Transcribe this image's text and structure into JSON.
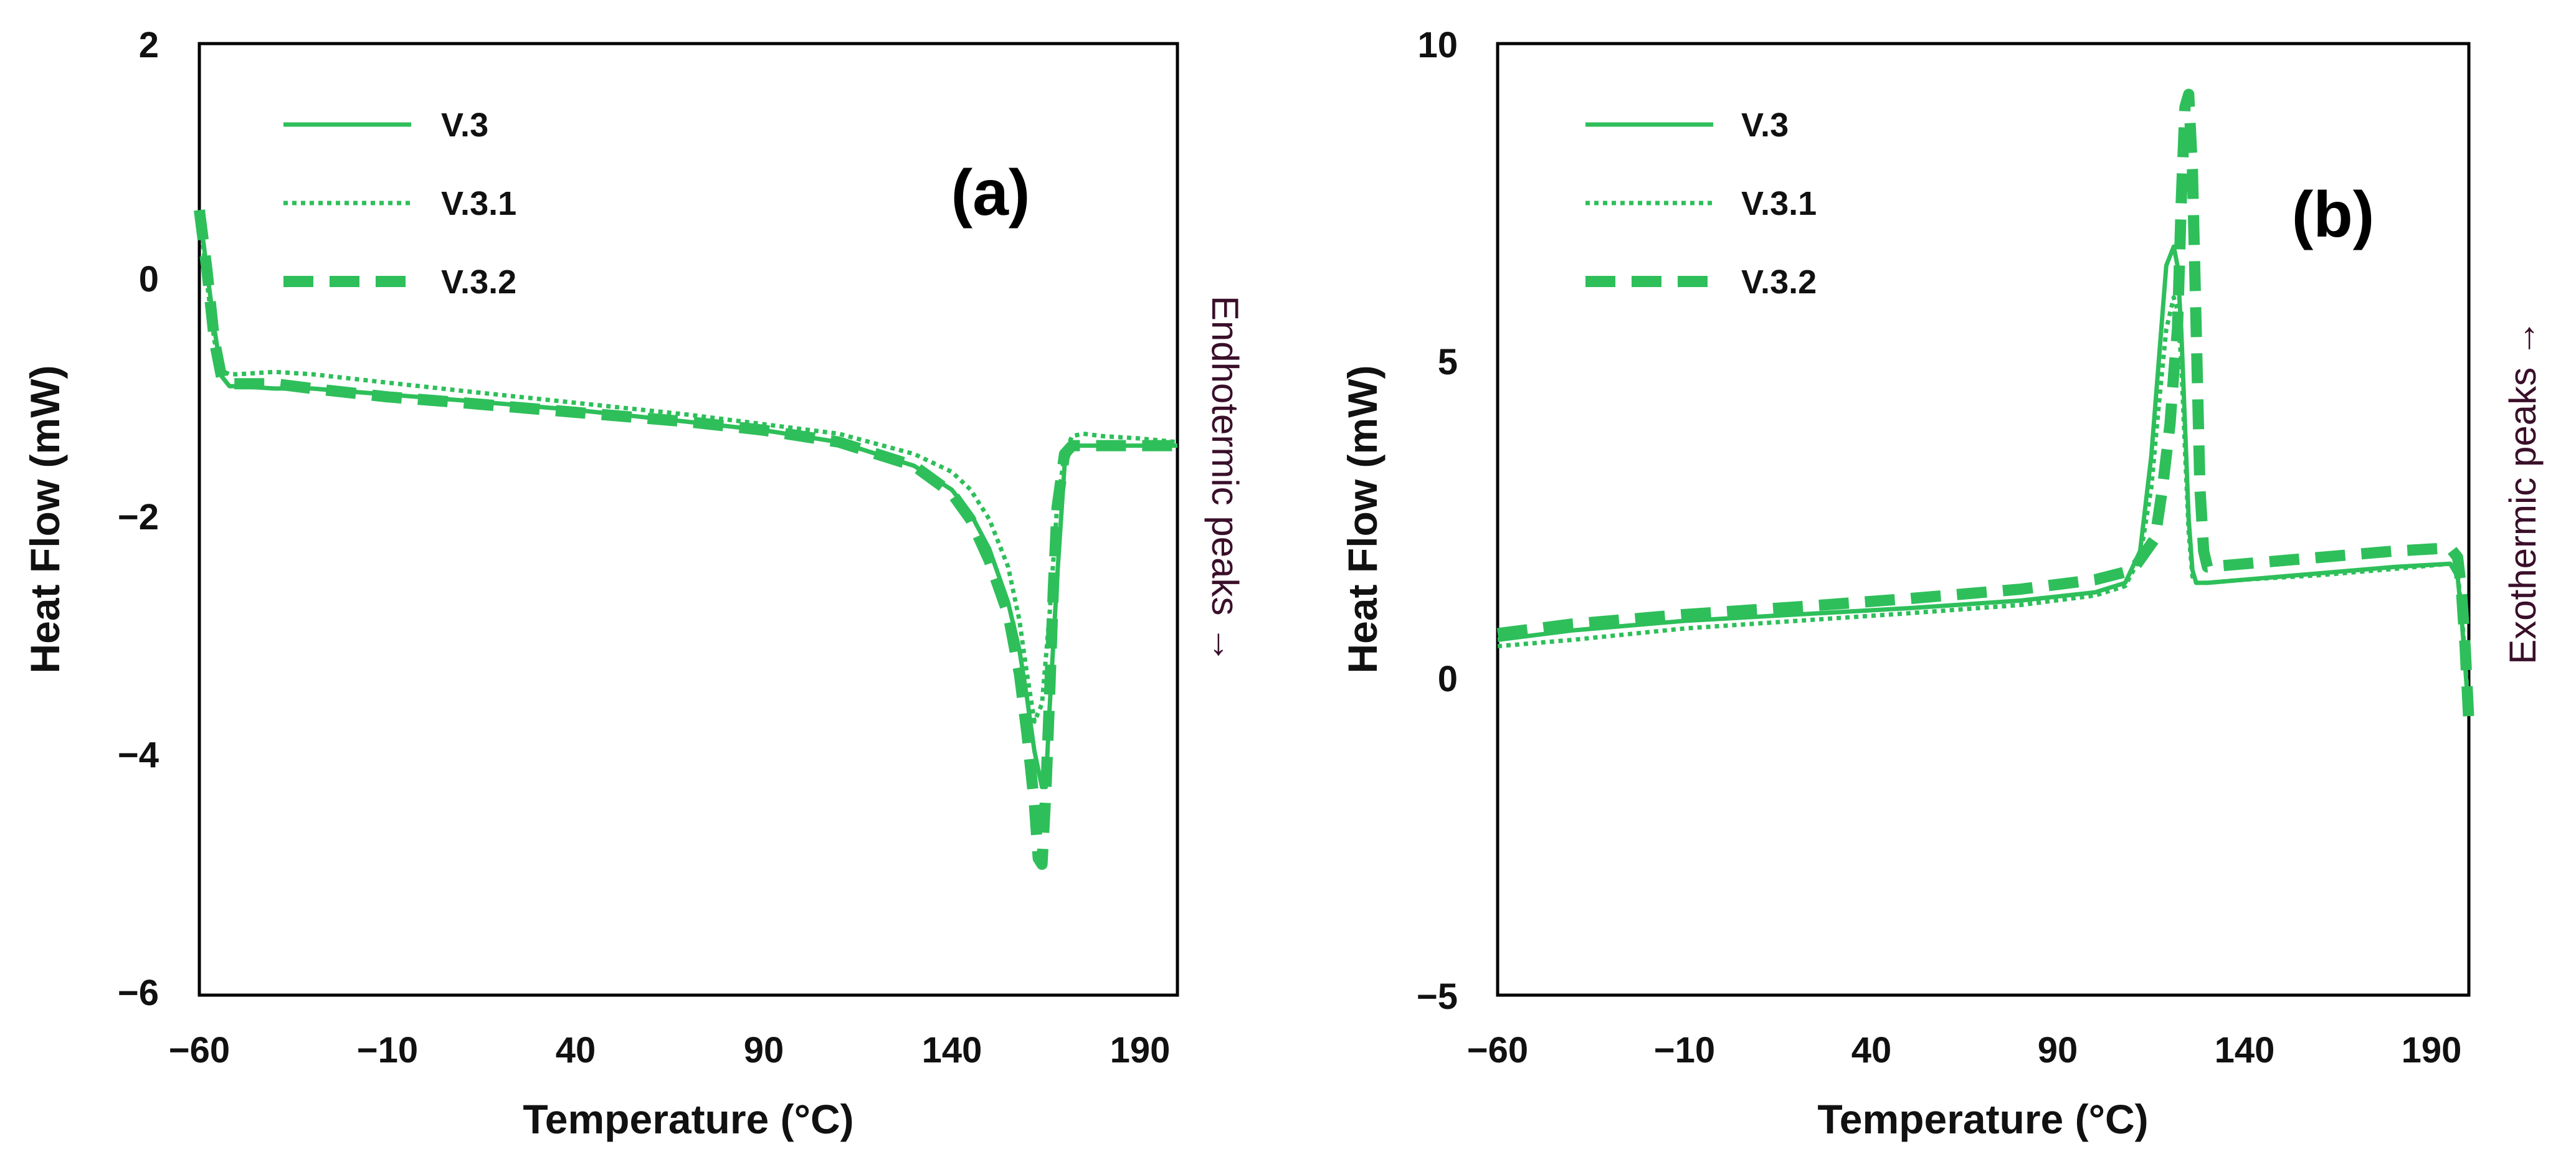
{
  "chart_data": [
    {
      "type": "line",
      "panel_label": "(a)",
      "title": "",
      "xlabel": "Temperature (°C)",
      "ylabel": "Heat Flow (mW)",
      "side_note": "Endhotermic peaks →",
      "xlim": [
        -60,
        200
      ],
      "ylim": [
        -6,
        2
      ],
      "x_ticks": [
        -60,
        -10,
        40,
        90,
        140,
        190
      ],
      "x_tick_labels": [
        "−60",
        "−10",
        "40",
        "90",
        "140",
        "190"
      ],
      "y_ticks": [
        -6,
        -4,
        -2,
        0,
        2
      ],
      "y_tick_labels": [
        "−6",
        "−4",
        "−2",
        "0",
        "2"
      ],
      "grid": false,
      "legend": "top-left",
      "series": [
        {
          "name": "V.3",
          "style": "solid",
          "x": [
            -60,
            -58,
            -56,
            -54,
            -52,
            -50,
            -40,
            -30,
            -10,
            10,
            40,
            70,
            90,
            110,
            130,
            140,
            145,
            150,
            155,
            158,
            160,
            162,
            164,
            165,
            166,
            168,
            170,
            172,
            175,
            180,
            190,
            200
          ],
          "y": [
            0.6,
            0.1,
            -0.4,
            -0.8,
            -0.88,
            -0.88,
            -0.9,
            -0.9,
            -0.95,
            -1.0,
            -1.08,
            -1.18,
            -1.25,
            -1.35,
            -1.55,
            -1.75,
            -1.95,
            -2.25,
            -2.7,
            -3.1,
            -3.5,
            -3.95,
            -4.25,
            -4.25,
            -3.6,
            -2.5,
            -1.55,
            -1.38,
            -1.38,
            -1.38,
            -1.38,
            -1.38
          ]
        },
        {
          "name": "V.3.1",
          "style": "dotted",
          "x": [
            -60,
            -58,
            -56,
            -54,
            -52,
            -50,
            -40,
            -30,
            -10,
            10,
            40,
            70,
            90,
            110,
            130,
            140,
            145,
            150,
            155,
            158,
            160,
            162,
            164,
            166,
            168,
            170,
            172,
            175,
            180,
            190,
            200
          ],
          "y": [
            0.6,
            0.0,
            -0.5,
            -0.75,
            -0.78,
            -0.78,
            -0.76,
            -0.78,
            -0.85,
            -0.92,
            -1.02,
            -1.12,
            -1.2,
            -1.28,
            -1.45,
            -1.6,
            -1.75,
            -2.0,
            -2.4,
            -2.85,
            -3.3,
            -3.7,
            -3.55,
            -2.8,
            -1.9,
            -1.45,
            -1.3,
            -1.28,
            -1.3,
            -1.32,
            -1.35
          ]
        },
        {
          "name": "V.3.2",
          "style": "dashed",
          "x": [
            -60,
            -58,
            -56,
            -54,
            -52,
            -50,
            -40,
            -30,
            -10,
            10,
            40,
            70,
            90,
            110,
            130,
            140,
            145,
            150,
            155,
            158,
            160,
            162,
            163,
            164,
            165,
            166,
            167,
            168,
            170,
            172,
            175,
            180,
            190,
            200
          ],
          "y": [
            0.6,
            0.1,
            -0.5,
            -0.82,
            -0.86,
            -0.86,
            -0.86,
            -0.9,
            -0.97,
            -1.02,
            -1.1,
            -1.18,
            -1.25,
            -1.35,
            -1.55,
            -1.78,
            -2.0,
            -2.35,
            -2.8,
            -3.3,
            -3.8,
            -4.4,
            -4.85,
            -4.9,
            -4.3,
            -3.5,
            -2.6,
            -1.9,
            -1.45,
            -1.38,
            -1.38,
            -1.38,
            -1.38,
            -1.38
          ]
        }
      ]
    },
    {
      "type": "line",
      "panel_label": "(b)",
      "title": "",
      "xlabel": "Temperature (°C)",
      "ylabel": "Heat Flow (mW)",
      "side_note": "Exothermic peaks →",
      "xlim": [
        -60,
        200
      ],
      "ylim": [
        -5,
        10
      ],
      "x_ticks": [
        -60,
        -10,
        40,
        90,
        140,
        190
      ],
      "x_tick_labels": [
        "−60",
        "−10",
        "40",
        "90",
        "140",
        "190"
      ],
      "y_ticks": [
        -5,
        0,
        5,
        10
      ],
      "y_tick_labels": [
        "−5",
        "0",
        "5",
        "10"
      ],
      "grid": false,
      "legend": "top-left",
      "series": [
        {
          "name": "V.3",
          "style": "solid",
          "x": [
            -60,
            -40,
            -10,
            20,
            50,
            80,
            100,
            108,
            112,
            115,
            117,
            119,
            121,
            122,
            123,
            124,
            125,
            126,
            127,
            128,
            130,
            140,
            160,
            180,
            195,
            197,
            198,
            199,
            200
          ],
          "y": [
            0.6,
            0.75,
            0.9,
            1.0,
            1.1,
            1.22,
            1.35,
            1.5,
            2.0,
            3.5,
            5.0,
            6.5,
            6.8,
            6.5,
            5.5,
            4.0,
            2.5,
            1.7,
            1.5,
            1.5,
            1.5,
            1.55,
            1.65,
            1.75,
            1.8,
            1.6,
            1.0,
            0.2,
            -0.6
          ]
        },
        {
          "name": "V.3.1",
          "style": "dotted",
          "x": [
            -60,
            -40,
            -10,
            20,
            50,
            80,
            100,
            108,
            112,
            115,
            117,
            119,
            121,
            122,
            123,
            124,
            125,
            126,
            127,
            128,
            130,
            140,
            160,
            180,
            195,
            197,
            198,
            199,
            200
          ],
          "y": [
            0.5,
            0.6,
            0.78,
            0.9,
            1.02,
            1.15,
            1.3,
            1.45,
            1.9,
            3.0,
            4.3,
            5.5,
            6.0,
            5.8,
            5.0,
            3.6,
            2.3,
            1.6,
            1.5,
            1.5,
            1.5,
            1.55,
            1.62,
            1.72,
            1.8,
            1.65,
            1.1,
            0.3,
            -0.6
          ]
        },
        {
          "name": "V.3.2",
          "style": "dashed",
          "x": [
            -60,
            -40,
            -10,
            20,
            50,
            80,
            100,
            110,
            116,
            118,
            120,
            121,
            122,
            123,
            124,
            125,
            126,
            127,
            128,
            129,
            130,
            140,
            160,
            180,
            195,
            197,
            198,
            199,
            200
          ],
          "y": [
            0.7,
            0.85,
            1.0,
            1.12,
            1.25,
            1.4,
            1.55,
            1.7,
            2.2,
            3.0,
            4.0,
            4.8,
            5.5,
            7.5,
            9.0,
            9.2,
            8.0,
            5.5,
            3.0,
            2.0,
            1.75,
            1.8,
            1.9,
            2.0,
            2.05,
            1.9,
            1.4,
            0.5,
            -0.7
          ]
        }
      ]
    }
  ],
  "colors": {
    "series": "#2ebf5a",
    "axes": "#000000",
    "side_note": "#3a0f2a"
  }
}
